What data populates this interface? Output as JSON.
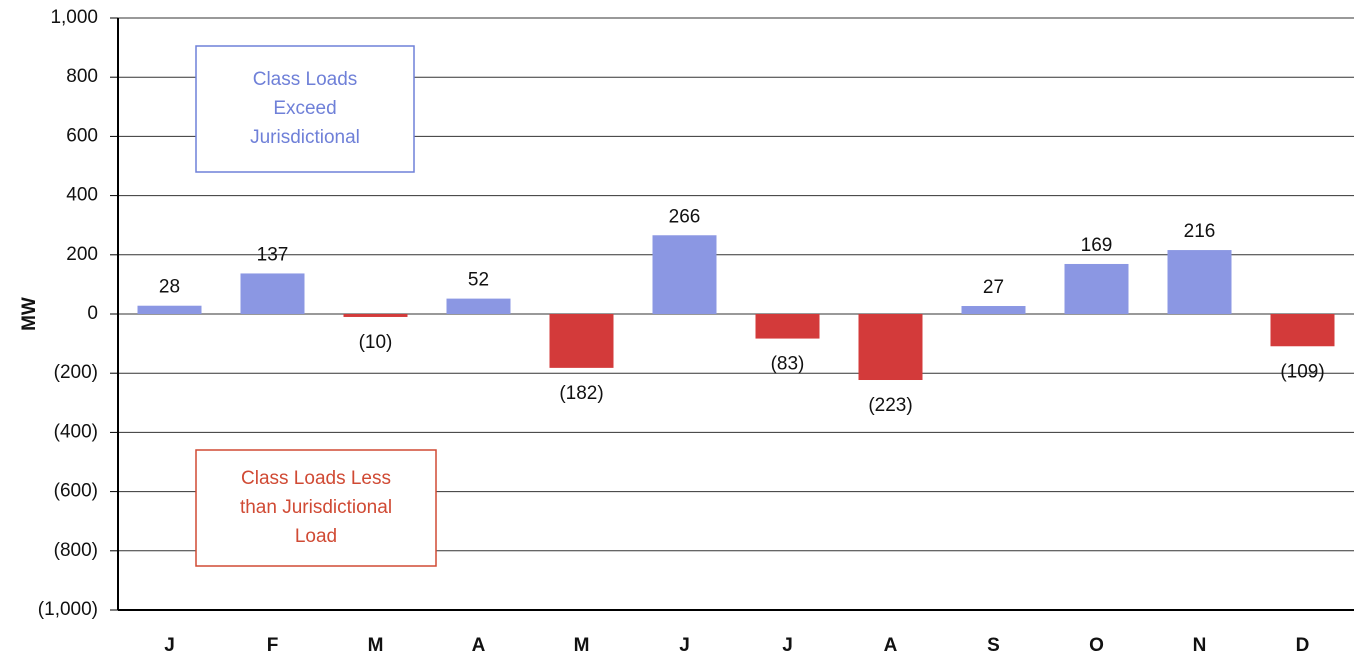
{
  "chart_data": {
    "type": "bar",
    "y_label": "MW",
    "categories": [
      "J",
      "F",
      "M",
      "A",
      "M",
      "J",
      "J",
      "A",
      "S",
      "O",
      "N",
      "D"
    ],
    "values": [
      28,
      137,
      -10,
      52,
      -182,
      266,
      -83,
      -223,
      27,
      169,
      216,
      -109
    ],
    "value_labels": [
      "28",
      "137",
      "(10)",
      "52",
      "(182)",
      "266",
      "(83)",
      "(223)",
      "27",
      "169",
      "216",
      "(109)"
    ],
    "color_positive": "#8b97e3",
    "color_negative": "#d33a3a",
    "ylim": [
      -1000,
      1000
    ],
    "yticks": [
      {
        "value": -1000,
        "label": "(1,000)"
      },
      {
        "value": -800,
        "label": "(800)"
      },
      {
        "value": -600,
        "label": "(600)"
      },
      {
        "value": -400,
        "label": "(400)"
      },
      {
        "value": -200,
        "label": "(200)"
      },
      0,
      200,
      400,
      600,
      800,
      {
        "value": 1000,
        "label": "1,000"
      }
    ],
    "grid": true,
    "annotations": [
      {
        "lines": [
          "Class Loads",
          "Exceed",
          "Jurisdictional"
        ],
        "color": "#6f80d8"
      },
      {
        "lines": [
          "Class Loads Less",
          "than Jurisdictional",
          "Load"
        ],
        "color": "#d04a34"
      }
    ]
  }
}
